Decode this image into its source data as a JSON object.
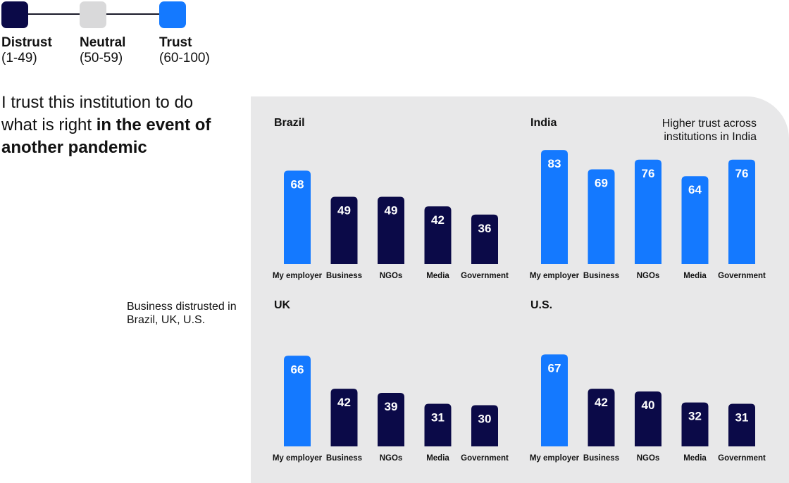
{
  "legend": [
    {
      "label": "Distrust",
      "range": "(1-49)",
      "color": "#0b0a48"
    },
    {
      "label": "Neutral",
      "range": "(50-59)",
      "color": "#d9d9da"
    },
    {
      "label": "Trust",
      "range": "(60-100)",
      "color": "#1479ff"
    }
  ],
  "question": {
    "text_plain": "I trust this institution to do what is right ",
    "text_bold": "in the event of another pandemic"
  },
  "annotations": {
    "business_distrusted": "Business distrusted in Brazil, UK, U.S.",
    "higher_trust_india": "Higher trust across institutions in India"
  },
  "colors": {
    "distrust": "#0b0a48",
    "neutral": "#d9d9da",
    "trust": "#1479ff",
    "panel": "#e8e8e9"
  },
  "chart_data": [
    {
      "type": "bar",
      "title": "Brazil",
      "categories": [
        "My employer",
        "Business",
        "NGOs",
        "Media",
        "Government"
      ],
      "values": [
        68,
        49,
        49,
        42,
        36
      ],
      "ylim": [
        0,
        100
      ]
    },
    {
      "type": "bar",
      "title": "India",
      "categories": [
        "My employer",
        "Business",
        "NGOs",
        "Media",
        "Government"
      ],
      "values": [
        83,
        69,
        76,
        64,
        76
      ],
      "ylim": [
        0,
        100
      ]
    },
    {
      "type": "bar",
      "title": "UK",
      "categories": [
        "My employer",
        "Business",
        "NGOs",
        "Media",
        "Government"
      ],
      "values": [
        66,
        42,
        39,
        31,
        30
      ],
      "ylim": [
        0,
        100
      ]
    },
    {
      "type": "bar",
      "title": "U.S.",
      "categories": [
        "My employer",
        "Business",
        "NGOs",
        "Media",
        "Government"
      ],
      "values": [
        67,
        42,
        40,
        32,
        31
      ],
      "ylim": [
        0,
        100
      ]
    }
  ]
}
